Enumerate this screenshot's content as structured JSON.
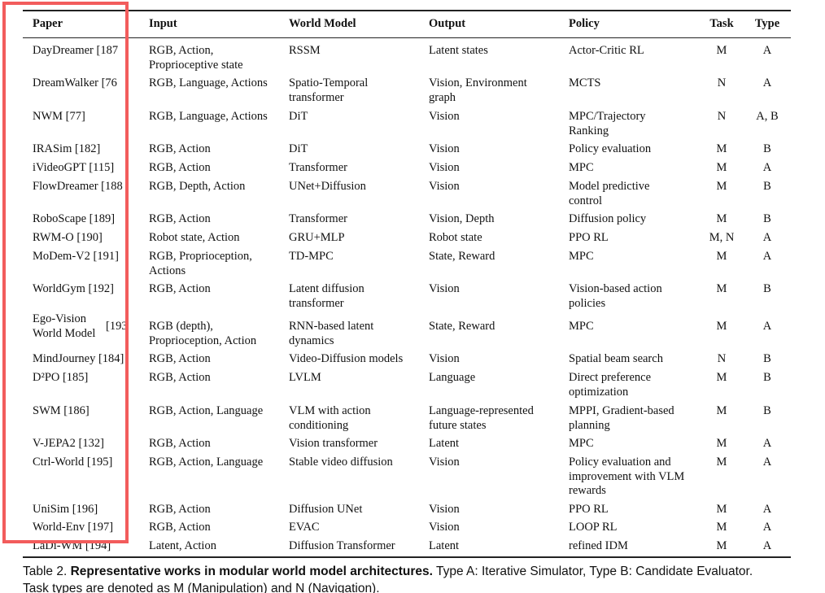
{
  "table": {
    "header": [
      "Paper",
      "Input",
      "World Model",
      "Output",
      "Policy",
      "Task",
      "Type"
    ],
    "rows": [
      [
        [
          "DayDreamer [187"
        ],
        [
          "RGB, Action,",
          "Proprioceptive state"
        ],
        [
          "RSSM"
        ],
        [
          "Latent states"
        ],
        [
          "Actor-Critic RL"
        ],
        [
          "M"
        ],
        [
          "A"
        ]
      ],
      [
        [
          "DreamWalker [76"
        ],
        [
          "RGB, Language, Actions"
        ],
        [
          "Spatio-Temporal",
          "transformer"
        ],
        [
          "Vision, Environment",
          "graph"
        ],
        [
          "MCTS"
        ],
        [
          "N"
        ],
        [
          "A"
        ]
      ],
      [
        [
          "NWM [77]"
        ],
        [
          "RGB, Language, Actions"
        ],
        [
          "DiT"
        ],
        [
          "Vision"
        ],
        [
          "MPC/Trajectory",
          "Ranking"
        ],
        [
          "N"
        ],
        [
          "A, B"
        ]
      ],
      [
        [
          "IRASim [182]"
        ],
        [
          "RGB, Action"
        ],
        [
          "DiT"
        ],
        [
          "Vision"
        ],
        [
          "Policy evaluation"
        ],
        [
          "M"
        ],
        [
          "B"
        ]
      ],
      [
        [
          "iVideoGPT [115]"
        ],
        [
          "RGB, Action"
        ],
        [
          "Transformer"
        ],
        [
          "Vision"
        ],
        [
          "MPC"
        ],
        [
          "M"
        ],
        [
          "A"
        ]
      ],
      [
        [
          "FlowDreamer [188"
        ],
        [
          "RGB, Depth, Action"
        ],
        [
          "UNet+Diffusion"
        ],
        [
          "Vision"
        ],
        [
          "Model predictive",
          "control"
        ],
        [
          "M"
        ],
        [
          "B"
        ]
      ],
      [
        [
          "RoboScape [189]"
        ],
        [
          "RGB, Action"
        ],
        [
          "Transformer"
        ],
        [
          "Vision, Depth"
        ],
        [
          "Diffusion policy"
        ],
        [
          "M"
        ],
        [
          "B"
        ]
      ],
      [
        [
          "RWM-O [190]"
        ],
        [
          "Robot state, Action"
        ],
        [
          "GRU+MLP"
        ],
        [
          "Robot state"
        ],
        [
          "PPO RL"
        ],
        [
          "M, N"
        ],
        [
          "A"
        ]
      ],
      [
        [
          "MoDem-V2 [191]"
        ],
        [
          "RGB, Proprioception,",
          "Actions"
        ],
        [
          "TD-MPC"
        ],
        [
          "State, Reward"
        ],
        [
          "MPC"
        ],
        [
          "M"
        ],
        [
          "A"
        ]
      ],
      [
        [
          "WorldGym [192]"
        ],
        [
          "RGB, Action"
        ],
        [
          "Latent diffusion",
          "transformer"
        ],
        [
          "Vision"
        ],
        [
          "Vision-based action",
          "policies"
        ],
        [
          "M"
        ],
        [
          "B"
        ]
      ],
      [
        [
          "Ego-Vision",
          "World Model",
          "[193"
        ],
        [
          "RGB (depth),",
          "Proprioception, Action"
        ],
        [
          "RNN-based latent",
          "dynamics"
        ],
        [
          "State, Reward"
        ],
        [
          "MPC"
        ],
        [
          "M"
        ],
        [
          "A"
        ]
      ],
      [
        [
          "MindJourney [184]"
        ],
        [
          "RGB, Action"
        ],
        [
          "Video-Diffusion models"
        ],
        [
          "Vision"
        ],
        [
          "Spatial beam search"
        ],
        [
          "N"
        ],
        [
          "B"
        ]
      ],
      [
        [
          "D²PO [185]"
        ],
        [
          "RGB, Action"
        ],
        [
          "LVLM"
        ],
        [
          "Language"
        ],
        [
          "Direct preference",
          "optimization"
        ],
        [
          "M"
        ],
        [
          "B"
        ]
      ],
      [
        [
          "SWM [186]"
        ],
        [
          "RGB, Action, Language"
        ],
        [
          "VLM with action",
          "conditioning"
        ],
        [
          "Language-represented",
          "future states"
        ],
        [
          "MPPI, Gradient-based",
          "planning"
        ],
        [
          "M"
        ],
        [
          "B"
        ]
      ],
      [
        [
          "V-JEPA2 [132]"
        ],
        [
          "RGB, Action"
        ],
        [
          "Vision transformer"
        ],
        [
          "Latent"
        ],
        [
          "MPC"
        ],
        [
          "M"
        ],
        [
          "A"
        ]
      ],
      [
        [
          "Ctrl-World [195]"
        ],
        [
          "RGB, Action, Language"
        ],
        [
          "Stable video diffusion"
        ],
        [
          "Vision"
        ],
        [
          "Policy evaluation and",
          "improvement with VLM",
          "rewards"
        ],
        [
          "M"
        ],
        [
          "A"
        ]
      ],
      [
        [
          "UniSim [196]"
        ],
        [
          "RGB, Action"
        ],
        [
          "Diffusion UNet"
        ],
        [
          "Vision"
        ],
        [
          "PPO RL"
        ],
        [
          "M"
        ],
        [
          "A"
        ]
      ],
      [
        [
          "World-Env [197]"
        ],
        [
          "RGB, Action"
        ],
        [
          "EVAC"
        ],
        [
          "Vision"
        ],
        [
          "LOOP RL"
        ],
        [
          "M"
        ],
        [
          "A"
        ]
      ],
      [
        [
          "LaDi-WM [194]"
        ],
        [
          "Latent, Action"
        ],
        [
          "Diffusion Transformer"
        ],
        [
          "Latent"
        ],
        [
          "refined IDM"
        ],
        [
          "M"
        ],
        [
          "A"
        ]
      ]
    ]
  },
  "caption": {
    "label": "Table 2.",
    "bold": "Representative works in modular world model architectures.",
    "text": "Type A: Iterative Simulator, Type B: Candidate Evaluator.",
    "text2": "Task types are denoted as M (Manipulation) and N (Navigation)."
  }
}
